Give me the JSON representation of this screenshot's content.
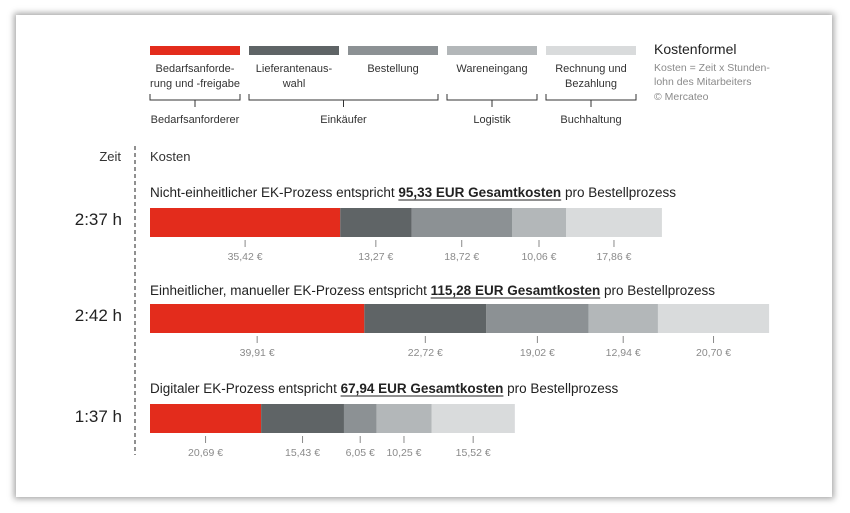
{
  "chart_data": {
    "type": "bar",
    "orientation": "horizontal",
    "stacked": true,
    "legend_position": "top",
    "currency_suffix": " €",
    "categories": [
      "Nicht-einheitlicher EK-Prozess",
      "Einheitlicher, manueller EK-Prozess",
      "Digitaler EK-Prozess"
    ],
    "series": [
      {
        "name": "Bedarfsanforde-rung und -freigabe",
        "color": "#e32c1c",
        "values": [
          35.42,
          39.91,
          20.69
        ]
      },
      {
        "name": "Lieferantenaus-wahl",
        "color": "#5f6466",
        "values": [
          13.27,
          22.72,
          15.43
        ]
      },
      {
        "name": "Bestellung",
        "color": "#8c9194",
        "values": [
          18.72,
          19.02,
          6.05
        ]
      },
      {
        "name": "Wareneingang",
        "color": "#b3b7b9",
        "values": [
          10.06,
          12.94,
          10.25
        ]
      },
      {
        "name": "Rechnung und Bezahlung",
        "color": "#d9dbdc",
        "values": [
          17.86,
          20.7,
          15.52
        ]
      }
    ],
    "series_labels": [
      [
        "Bedarfsanforde-",
        "rung und -freigabe"
      ],
      [
        "Lieferantenaus-",
        "wahl"
      ],
      [
        "Bestellung"
      ],
      [
        "Wareneingang"
      ],
      [
        "Rechnung und",
        "Bezahlung"
      ]
    ],
    "value_labels": [
      [
        "35,42 €",
        "13,27 €",
        "18,72 €",
        "10,06 €",
        "17,86 €"
      ],
      [
        "39,91 €",
        "22,72 €",
        "19,02 €",
        "12,94 €",
        "20,70 €"
      ],
      [
        "20,69 €",
        "15,43 €",
        "6,05 €",
        "10,25 €",
        "15,52 €"
      ]
    ],
    "groups": [
      {
        "label": "Bedarfsanforderer",
        "series_range": [
          0,
          0
        ]
      },
      {
        "label": "Einkäufer",
        "series_range": [
          1,
          2
        ]
      },
      {
        "label": "Logistik",
        "series_range": [
          3,
          3
        ]
      },
      {
        "label": "Buchhaltung",
        "series_range": [
          4,
          4
        ]
      }
    ],
    "axis_labels": {
      "time": "Zeit",
      "cost": "Kosten"
    },
    "rows": [
      {
        "time": "2:37 h",
        "prefix": "Nicht-einheitlicher EK-Prozess entspricht ",
        "total": "95,33 EUR Gesamtkosten",
        "suffix": " pro Bestellprozess"
      },
      {
        "time": "2:42 h",
        "prefix": "Einheitlicher, manueller EK-Prozess entspricht ",
        "total": "115,28 EUR Gesamtkosten",
        "suffix": " pro Bestellprozess"
      },
      {
        "time": "1:37 h",
        "prefix": "Digitaler EK-Prozess entspricht ",
        "total": "67,94 EUR Gesamtkosten",
        "suffix": " pro Bestellprozess"
      }
    ],
    "formula": {
      "title": "Kostenformel",
      "lines": [
        "Kosten = Zeit x Stunden-",
        "lohn des Mitarbeiters",
        "© Mercateo"
      ]
    }
  }
}
